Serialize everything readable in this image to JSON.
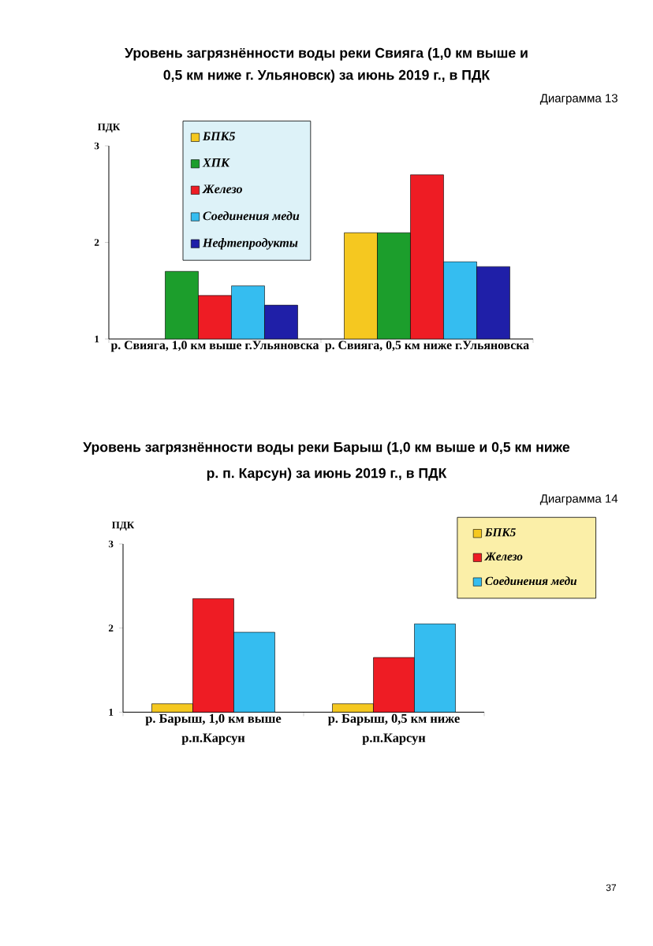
{
  "chart_data": [
    {
      "type": "bar",
      "title": "Уровень загрязнённости воды реки Свияга (1,0 км выше и 0,5 км ниже г. Ульяновск) за июнь 2019 г., в ПДК",
      "annotations": [
        "Диаграмма 13"
      ],
      "ylabel": "ПДК",
      "categories": [
        "р. Свияга, 1,0 км выше г.Ульяновска",
        "р. Свияга, 0,5 км ниже г.Ульяновска"
      ],
      "series": [
        {
          "name": "БПК5",
          "color": "#f5c820",
          "values": [
            null,
            2.1
          ]
        },
        {
          "name": "ХПК",
          "color": "#1c9e2c",
          "values": [
            1.7,
            2.1
          ]
        },
        {
          "name": "Железо",
          "color": "#ee1c24",
          "values": [
            1.45,
            2.7
          ]
        },
        {
          "name": "Соединения меди",
          "color": "#35bdf0",
          "values": [
            1.55,
            1.8
          ]
        },
        {
          "name": "Нефтепродукты",
          "color": "#1f1fa8",
          "values": [
            1.35,
            1.75
          ]
        }
      ],
      "ylim": [
        1,
        3
      ],
      "yticks": [
        1,
        2,
        3
      ],
      "legend": "top left"
    },
    {
      "type": "bar",
      "title": "Уровень загрязнённости воды реки Барыш (1,0 км выше и 0,5 км ниже р. п. Карсун) за июнь 2019 г., в ПДК",
      "annotations": [
        "Диаграмма 14",
        "37"
      ],
      "ylabel": "ПДК",
      "categories": [
        "р. Барыш, 1,0 км выше р.п.Карсун",
        "р. Барыш, 0,5 км ниже р.п.Карсун"
      ],
      "series": [
        {
          "name": "БПК5",
          "color": "#f5c820",
          "values": [
            1.1,
            1.1
          ]
        },
        {
          "name": "Железо",
          "color": "#ee1c24",
          "values": [
            2.35,
            1.65
          ]
        },
        {
          "name": "Соединения меди",
          "color": "#35bdf0",
          "values": [
            1.95,
            2.05
          ]
        }
      ],
      "ylim": [
        1,
        3
      ],
      "yticks": [
        1,
        2,
        3
      ],
      "legend": "top right"
    }
  ]
}
